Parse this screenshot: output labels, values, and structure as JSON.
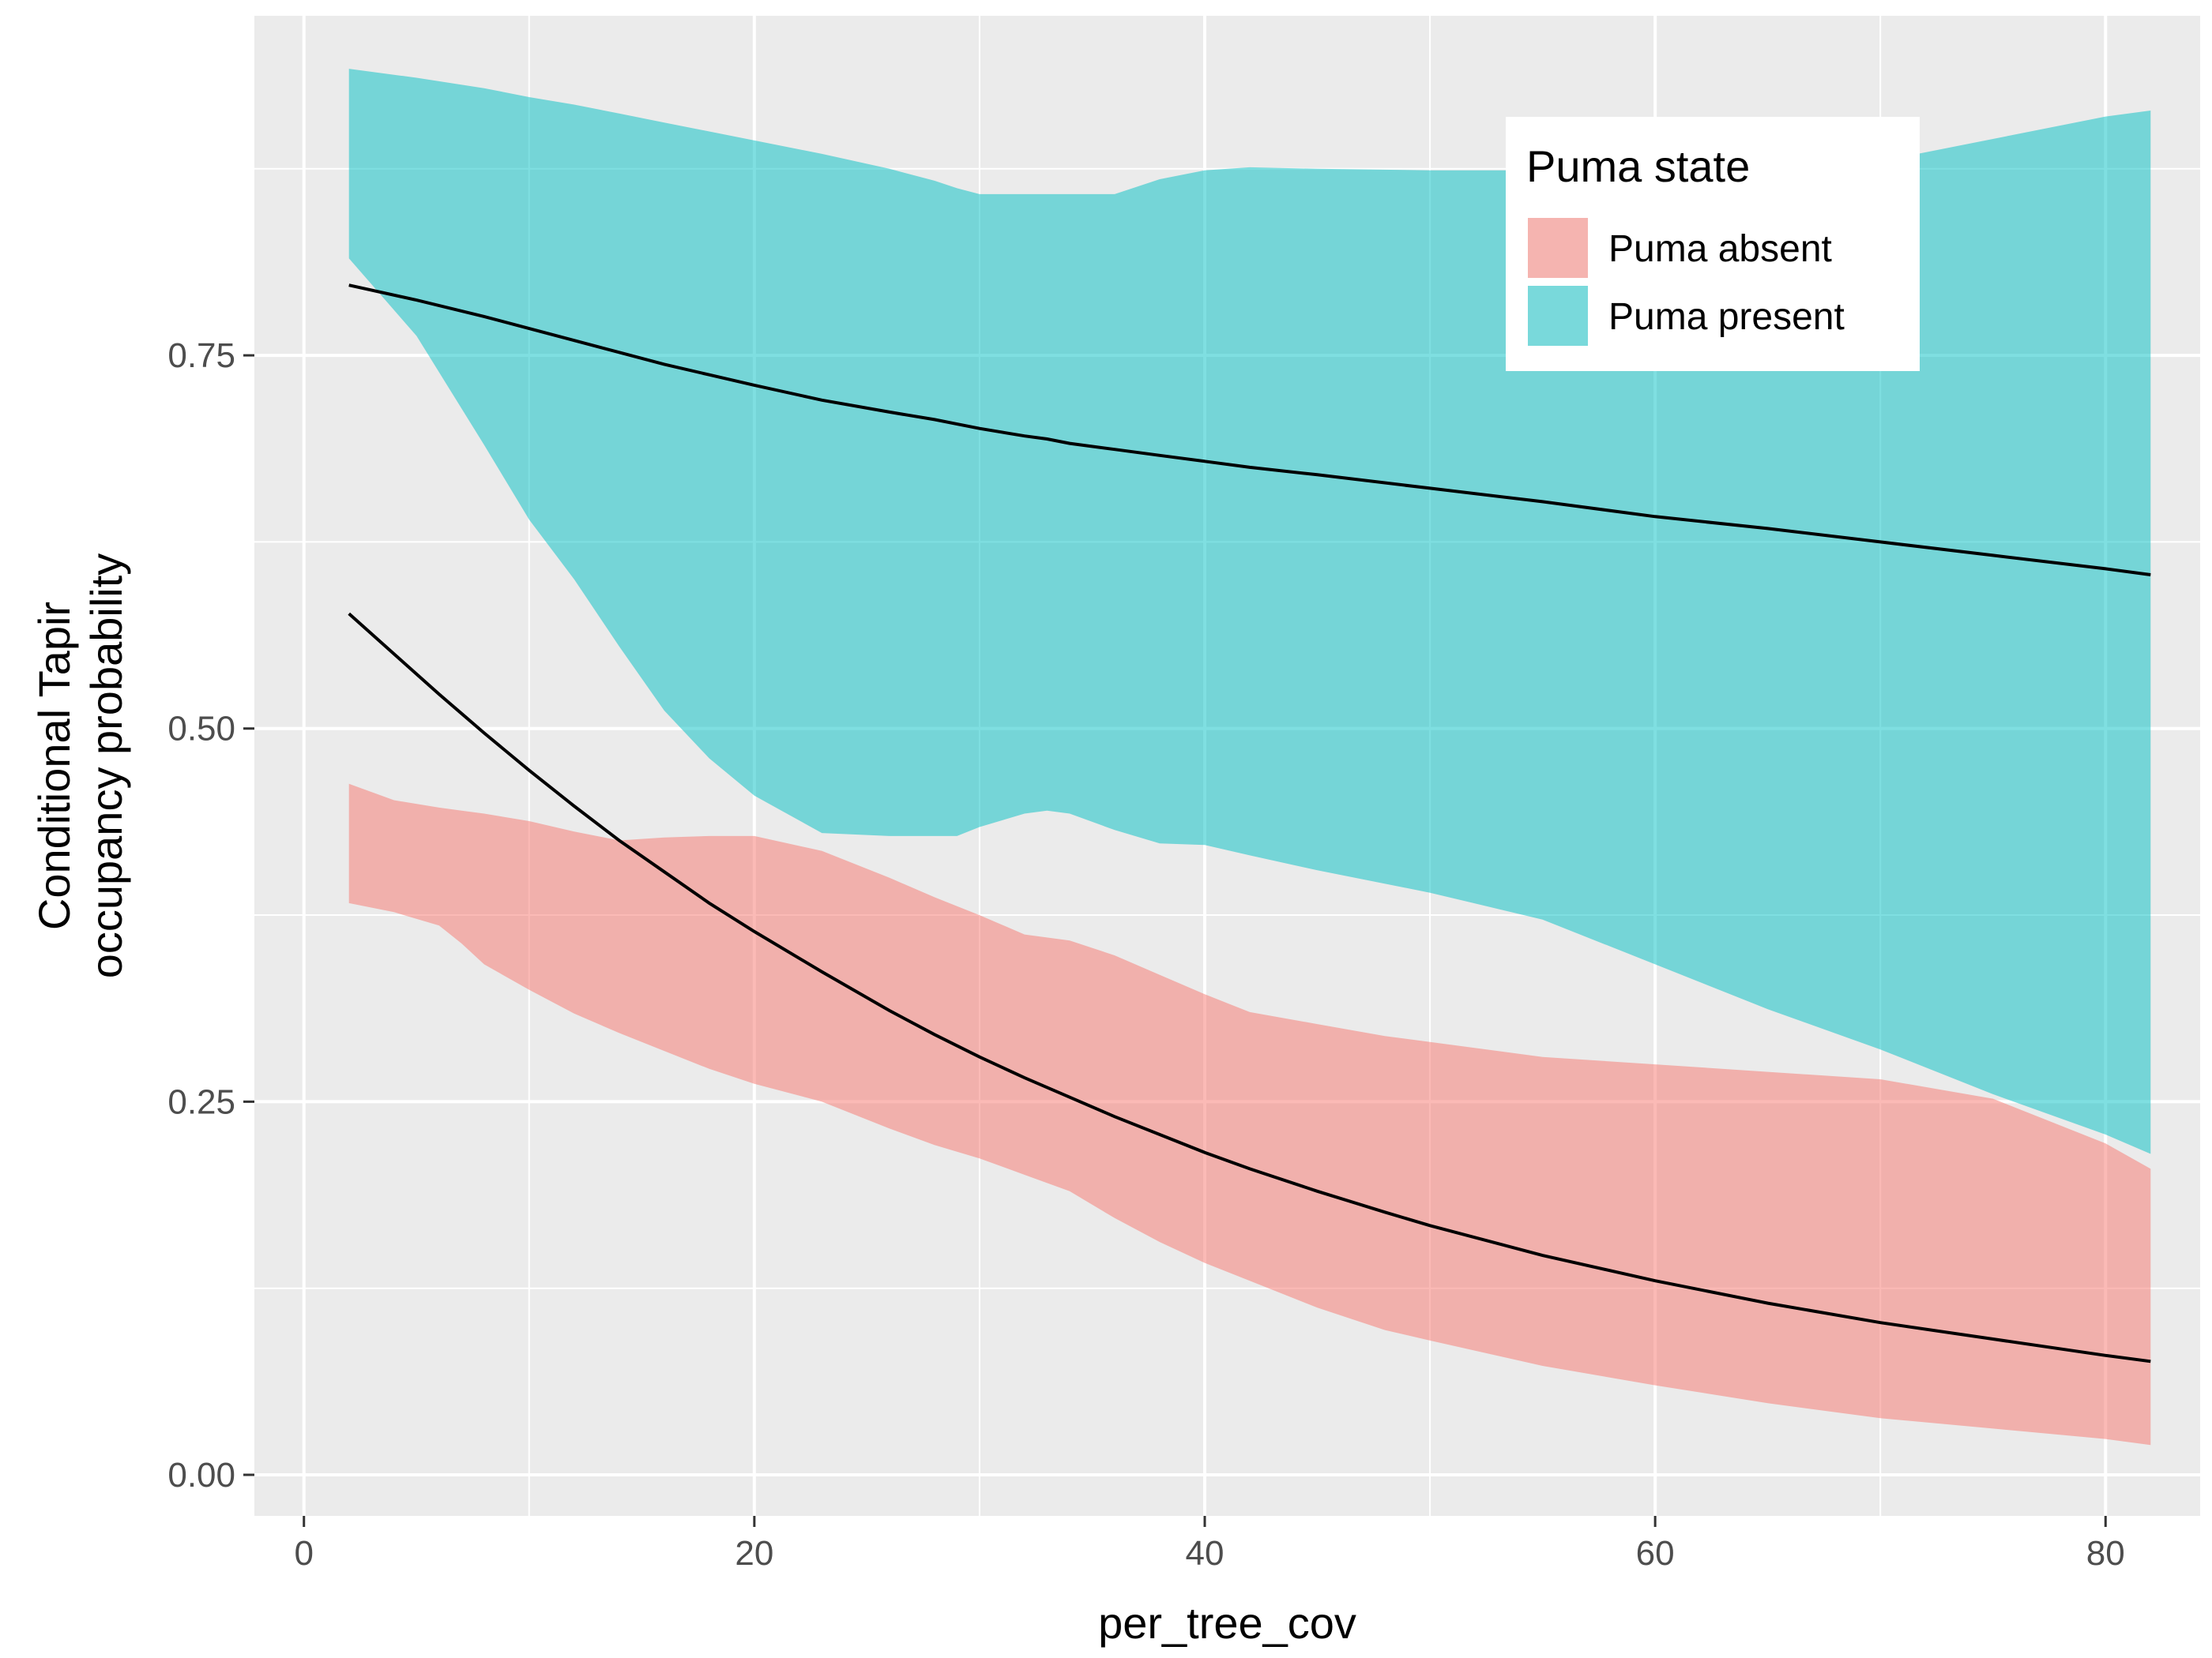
{
  "chart_data": {
    "type": "area",
    "xlabel": "per_tree_cov",
    "ylabel_lines": [
      "Conditional Tapir",
      "occupancy probability"
    ],
    "xlim": [
      -2.2,
      84.2
    ],
    "ylim": [
      -0.0275,
      0.9775
    ],
    "x_ticks": [
      0,
      20,
      40,
      60,
      80
    ],
    "x_tick_labels": [
      "0",
      "20",
      "40",
      "60",
      "80"
    ],
    "y_ticks": [
      0,
      0.25,
      0.5,
      0.75
    ],
    "y_tick_labels": [
      "0.00",
      "0.25",
      "0.50",
      "0.75"
    ],
    "x_minor": [
      10,
      30,
      50,
      70
    ],
    "y_minor": [
      0.125,
      0.375,
      0.625,
      0.875
    ],
    "legend": {
      "title": "Puma state",
      "placement": "top-right"
    },
    "series": [
      {
        "name": "Puma absent",
        "color": "#F8766D",
        "x": [
          2,
          4,
          6,
          7,
          8,
          10,
          12,
          14,
          16,
          18,
          20,
          23,
          26,
          28,
          30,
          32,
          34,
          36,
          38,
          40,
          42,
          45,
          48,
          50,
          55,
          60,
          65,
          70,
          75,
          80,
          82
        ],
        "lower": [
          0.383,
          0.377,
          0.368,
          0.356,
          0.342,
          0.325,
          0.309,
          0.296,
          0.284,
          0.272,
          0.262,
          0.25,
          0.232,
          0.221,
          0.212,
          0.201,
          0.19,
          0.172,
          0.156,
          0.142,
          0.13,
          0.112,
          0.097,
          0.09,
          0.073,
          0.06,
          0.048,
          0.038,
          0.031,
          0.024,
          0.02
        ],
        "upper": [
          0.463,
          0.452,
          0.447,
          0.445,
          0.443,
          0.438,
          0.431,
          0.425,
          0.427,
          0.428,
          0.428,
          0.418,
          0.4,
          0.387,
          0.375,
          0.362,
          0.358,
          0.348,
          0.335,
          0.322,
          0.31,
          0.302,
          0.294,
          0.29,
          0.28,
          0.275,
          0.27,
          0.265,
          0.252,
          0.222,
          0.205
        ],
        "mean": [
          0.577,
          0.55,
          0.523,
          0.51,
          0.497,
          0.472,
          0.448,
          0.425,
          0.404,
          0.383,
          0.364,
          0.337,
          0.311,
          0.295,
          0.28,
          0.266,
          0.253,
          0.24,
          0.228,
          0.216,
          0.205,
          0.19,
          0.176,
          0.167,
          0.147,
          0.13,
          0.115,
          0.102,
          0.091,
          0.08,
          0.076
        ]
      },
      {
        "name": "Puma present",
        "color": "#00BFC4",
        "x": [
          2,
          5,
          8,
          10,
          12,
          14,
          16,
          18,
          20,
          23,
          26,
          28,
          29,
          30,
          32,
          33,
          34,
          36,
          38,
          40,
          42,
          45,
          50,
          55,
          60,
          65,
          70,
          75,
          80,
          82
        ],
        "lower": [
          0.815,
          0.763,
          0.69,
          0.64,
          0.6,
          0.555,
          0.512,
          0.48,
          0.455,
          0.43,
          0.428,
          0.428,
          0.428,
          0.434,
          0.443,
          0.445,
          0.443,
          0.432,
          0.423,
          0.422,
          0.415,
          0.405,
          0.39,
          0.372,
          0.342,
          0.312,
          0.285,
          0.255,
          0.228,
          0.215
        ],
        "upper": [
          0.942,
          0.936,
          0.929,
          0.923,
          0.918,
          0.912,
          0.906,
          0.9,
          0.894,
          0.885,
          0.875,
          0.867,
          0.862,
          0.858,
          0.858,
          0.858,
          0.858,
          0.858,
          0.868,
          0.874,
          0.876,
          0.875,
          0.874,
          0.874,
          0.873,
          0.875,
          0.88,
          0.895,
          0.91,
          0.914
        ],
        "mean": [
          0.797,
          0.787,
          0.776,
          0.768,
          0.76,
          0.752,
          0.744,
          0.737,
          0.73,
          0.72,
          0.712,
          0.707,
          0.704,
          0.701,
          0.696,
          0.694,
          0.691,
          0.687,
          0.683,
          0.679,
          0.675,
          0.67,
          0.661,
          0.652,
          0.642,
          0.634,
          0.625,
          0.616,
          0.607,
          0.603
        ]
      }
    ]
  }
}
